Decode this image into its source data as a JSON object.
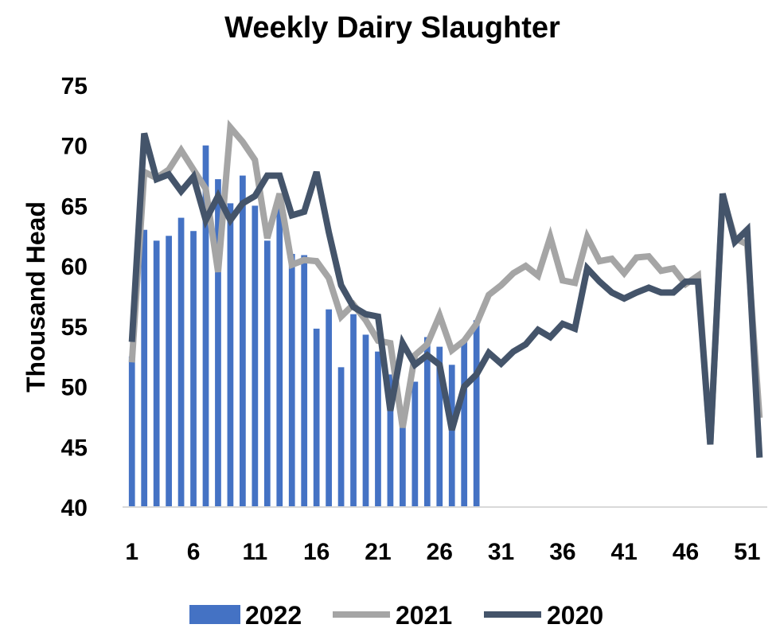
{
  "chart_data": {
    "type": "bar",
    "title": "Weekly Dairy Slaughter",
    "ylabel": "Thousand Head",
    "xlabel": "",
    "ylim": [
      40,
      75
    ],
    "yticks": [
      40,
      45,
      50,
      55,
      60,
      65,
      70,
      75
    ],
    "xticks": [
      1,
      6,
      11,
      16,
      21,
      26,
      31,
      36,
      41,
      46,
      51
    ],
    "x_range": [
      1,
      52
    ],
    "legend_position": "bottom",
    "grid": false,
    "colors": {
      "2022": "#4472c4",
      "2021": "#a5a5a5",
      "2020": "#44546a"
    },
    "series": [
      {
        "name": "2022",
        "type": "bar",
        "x": [
          1,
          2,
          3,
          4,
          5,
          6,
          7,
          8,
          9,
          10,
          11,
          12,
          13,
          14,
          15,
          16,
          17,
          18,
          19,
          20,
          21,
          22,
          23,
          24,
          25,
          26,
          27,
          28,
          29
        ],
        "values": [
          52.5,
          63,
          62.1,
          62.5,
          64,
          62.9,
          70,
          67.2,
          65.2,
          67.5,
          65,
          62.1,
          64.8,
          61,
          60.9,
          54.8,
          56.4,
          51.6,
          56,
          54.3,
          52.9,
          51,
          47.3,
          50.4,
          54.1,
          53.3,
          51.8,
          53.9,
          55.5
        ]
      },
      {
        "name": "2021",
        "type": "line",
        "x": [
          1,
          2,
          3,
          4,
          5,
          6,
          7,
          8,
          9,
          10,
          11,
          12,
          13,
          14,
          15,
          16,
          17,
          18,
          19,
          20,
          21,
          22,
          23,
          24,
          25,
          26,
          27,
          28,
          29,
          30,
          31,
          32,
          33,
          34,
          35,
          36,
          37,
          38,
          39,
          40,
          41,
          42,
          43,
          44,
          45,
          46,
          47,
          48,
          49,
          50,
          51,
          52
        ],
        "values": [
          52,
          67.8,
          67.3,
          68,
          69.6,
          68,
          66.4,
          59.5,
          71.5,
          70.3,
          68.8,
          62.3,
          66,
          60.1,
          60.5,
          60.4,
          59,
          55.8,
          56.8,
          55.5,
          53.8,
          53.6,
          46.6,
          52.6,
          53.5,
          55.9,
          53,
          53.8,
          55.2,
          57.6,
          58.4,
          59.4,
          60,
          59.2,
          62.4,
          58.8,
          58.6,
          62.4,
          60.4,
          60.6,
          59.4,
          60.7,
          60.8,
          59.6,
          59.8,
          58.5,
          59.2,
          45.2,
          65.8,
          62.3,
          61.8,
          47.4
        ]
      },
      {
        "name": "2020",
        "type": "line",
        "x": [
          1,
          2,
          3,
          4,
          5,
          6,
          7,
          8,
          9,
          10,
          11,
          12,
          13,
          14,
          15,
          16,
          17,
          18,
          19,
          20,
          21,
          22,
          23,
          24,
          25,
          26,
          27,
          28,
          29,
          30,
          31,
          32,
          33,
          34,
          35,
          36,
          37,
          38,
          39,
          40,
          41,
          42,
          43,
          44,
          45,
          46,
          47,
          48,
          49,
          50,
          51,
          52
        ],
        "values": [
          53.7,
          71,
          67.2,
          67.6,
          66.2,
          67.4,
          63.8,
          65.8,
          63.8,
          65.2,
          65.8,
          67.5,
          67.5,
          64.2,
          64.5,
          67.8,
          62.8,
          58.4,
          56.6,
          56,
          55.8,
          48,
          53.6,
          51.8,
          52.6,
          51.8,
          46.4,
          50,
          51,
          52.8,
          51.9,
          52.9,
          53.5,
          54.7,
          54.1,
          55.2,
          54.8,
          59.8,
          58.7,
          57.8,
          57.3,
          57.8,
          58.2,
          57.8,
          57.8,
          58.7,
          58.7,
          45.2,
          66,
          62,
          63,
          44.1
        ]
      }
    ]
  }
}
